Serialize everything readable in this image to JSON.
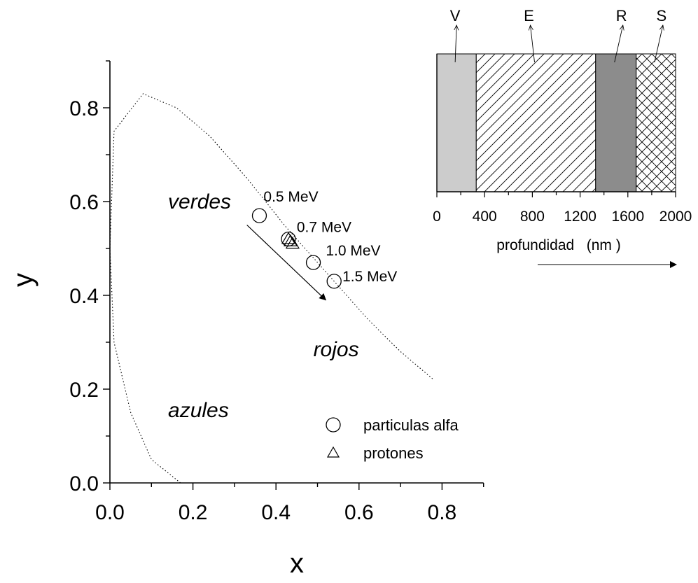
{
  "chart_data": [
    {
      "type": "scatter",
      "xlabel": "x",
      "ylabel": "y",
      "xlim": [
        0.0,
        0.9
      ],
      "ylim": [
        0.0,
        0.9
      ],
      "x_ticks": [
        "0.0",
        "0.2",
        "0.4",
        "0.6",
        "0.8"
      ],
      "y_ticks": [
        "0.0",
        "0.2",
        "0.4",
        "0.6",
        "0.8"
      ],
      "series": [
        {
          "name": "particulas alfa",
          "marker": "circle",
          "points": [
            {
              "x": 0.36,
              "y": 0.57
            },
            {
              "x": 0.43,
              "y": 0.52
            },
            {
              "x": 0.49,
              "y": 0.47
            },
            {
              "x": 0.54,
              "y": 0.43
            }
          ]
        },
        {
          "name": "protones",
          "marker": "triangle",
          "points": [
            {
              "x": 0.43,
              "y": 0.52
            },
            {
              "x": 0.435,
              "y": 0.515
            },
            {
              "x": 0.44,
              "y": 0.51
            }
          ]
        }
      ],
      "locus_curve": [
        [
          0.17,
          0.0
        ],
        [
          0.1,
          0.05
        ],
        [
          0.05,
          0.15
        ],
        [
          0.01,
          0.3
        ],
        [
          0.0,
          0.5
        ],
        [
          0.01,
          0.75
        ],
        [
          0.08,
          0.83
        ],
        [
          0.16,
          0.8
        ],
        [
          0.24,
          0.74
        ],
        [
          0.33,
          0.65
        ],
        [
          0.42,
          0.55
        ],
        [
          0.52,
          0.45
        ],
        [
          0.62,
          0.35
        ],
        [
          0.7,
          0.28
        ],
        [
          0.78,
          0.22
        ]
      ],
      "energy_labels": [
        {
          "text": "0.5 MeV",
          "x": 0.37,
          "y": 0.6
        },
        {
          "text": "0.7 MeV",
          "x": 0.45,
          "y": 0.535
        },
        {
          "text": "1.0 MeV",
          "x": 0.52,
          "y": 0.485
        },
        {
          "text": "1.5 MeV",
          "x": 0.56,
          "y": 0.43
        }
      ],
      "region_labels": [
        {
          "text": "verdes",
          "x": 0.14,
          "y": 0.585
        },
        {
          "text": "rojos",
          "x": 0.49,
          "y": 0.27
        },
        {
          "text": "azules",
          "x": 0.14,
          "y": 0.14
        }
      ],
      "trend_arrow": {
        "from": [
          0.33,
          0.55
        ],
        "to": [
          0.52,
          0.39
        ]
      },
      "legend": {
        "position": "bottom-right",
        "entries": [
          {
            "symbol": "circle",
            "label": "particulas alfa"
          },
          {
            "symbol": "triangle",
            "label": "protones"
          }
        ]
      },
      "grid": false
    },
    {
      "type": "bar",
      "subtype": "layer-stack",
      "xlabel": "profundidad   (nm )",
      "xlim": [
        0,
        2000
      ],
      "x_ticks": [
        "0",
        "400",
        "800",
        "1200",
        "1600",
        "2000"
      ],
      "layers": [
        {
          "label": "V",
          "from": 0,
          "to": 330,
          "fill": "light-gray"
        },
        {
          "label": "E",
          "from": 330,
          "to": 1330,
          "fill": "diagonal-hatch"
        },
        {
          "label": "R",
          "from": 1330,
          "to": 1670,
          "fill": "dark-gray"
        },
        {
          "label": "S",
          "from": 1670,
          "to": 2000,
          "fill": "cross-hatch"
        }
      ],
      "colors": {
        "light-gray": "#cccccc",
        "dark-gray": "#8c8c8c"
      },
      "grid": false
    }
  ]
}
